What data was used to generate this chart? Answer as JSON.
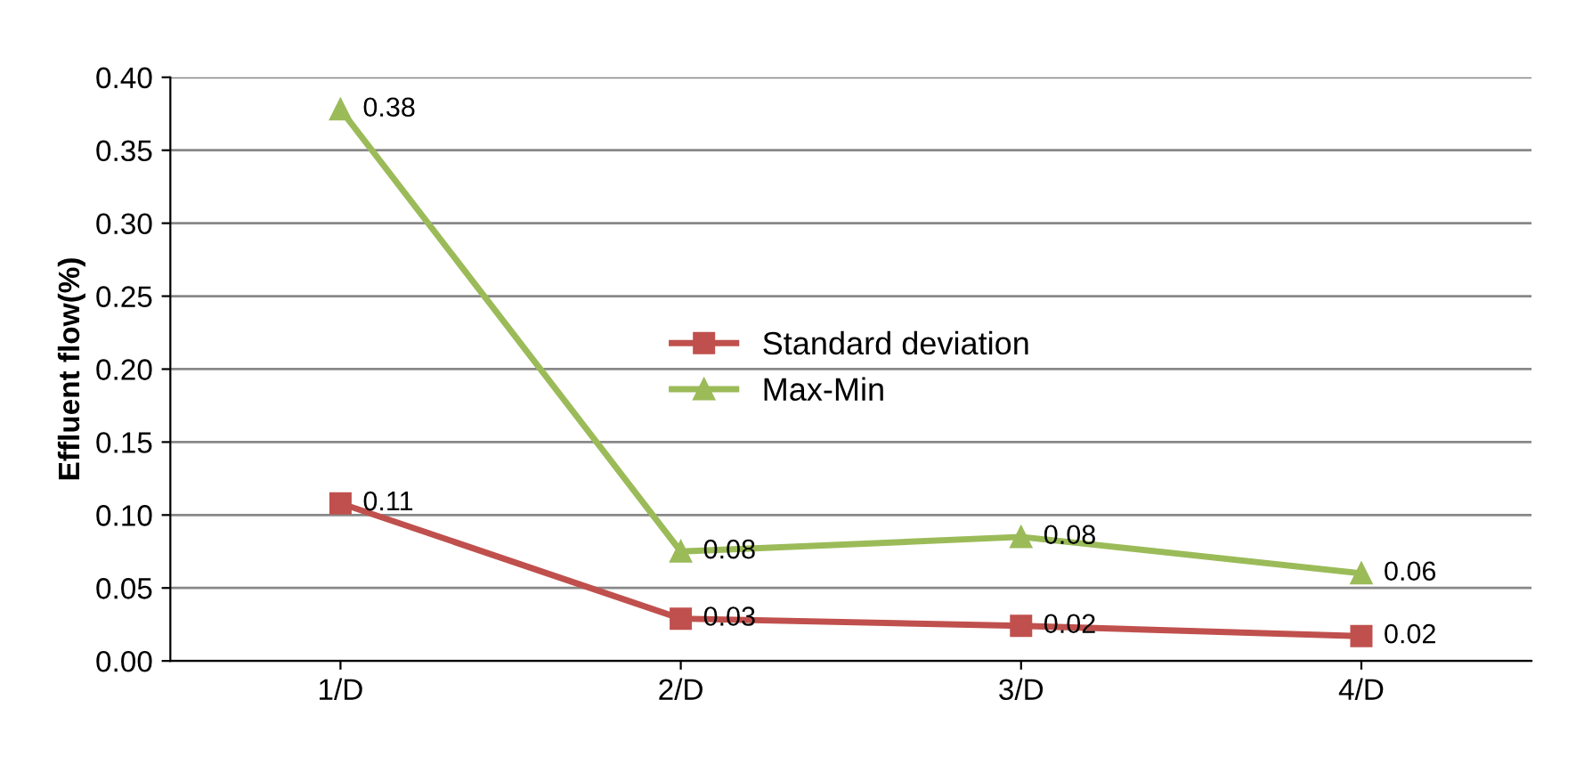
{
  "chart_data": {
    "type": "line",
    "ylabel": "Effluent flow(%)",
    "categories": [
      "1/D",
      "2/D",
      "3/D",
      "4/D"
    ],
    "series": [
      {
        "name": "Standard deviation",
        "color": "#c0504d",
        "marker": "square",
        "values": [
          0.108,
          0.029,
          0.024,
          0.017
        ],
        "value_labels": [
          "0.11",
          "0.03",
          "0.02",
          "0.02"
        ]
      },
      {
        "name": "Max-Min",
        "color": "#9bbb59",
        "marker": "triangle",
        "values": [
          0.378,
          0.075,
          0.085,
          0.06
        ],
        "value_labels": [
          "0.38",
          "0.08",
          "0.08",
          "0.06"
        ]
      }
    ],
    "ylim": [
      0,
      0.4
    ],
    "yticks": [
      {
        "value": 0,
        "label": "0.00"
      },
      {
        "value": 0.05,
        "label": "0.05"
      },
      {
        "value": 0.1,
        "label": "0.10"
      },
      {
        "value": 0.15,
        "label": "0.15"
      },
      {
        "value": 0.2,
        "label": "0.20"
      },
      {
        "value": 0.25,
        "label": "0.25"
      },
      {
        "value": 0.3,
        "label": "0.30"
      },
      {
        "value": 0.35,
        "label": "0.35"
      },
      {
        "value": 0.4,
        "label": "0.40"
      }
    ],
    "grid": "y",
    "legend": "center"
  }
}
